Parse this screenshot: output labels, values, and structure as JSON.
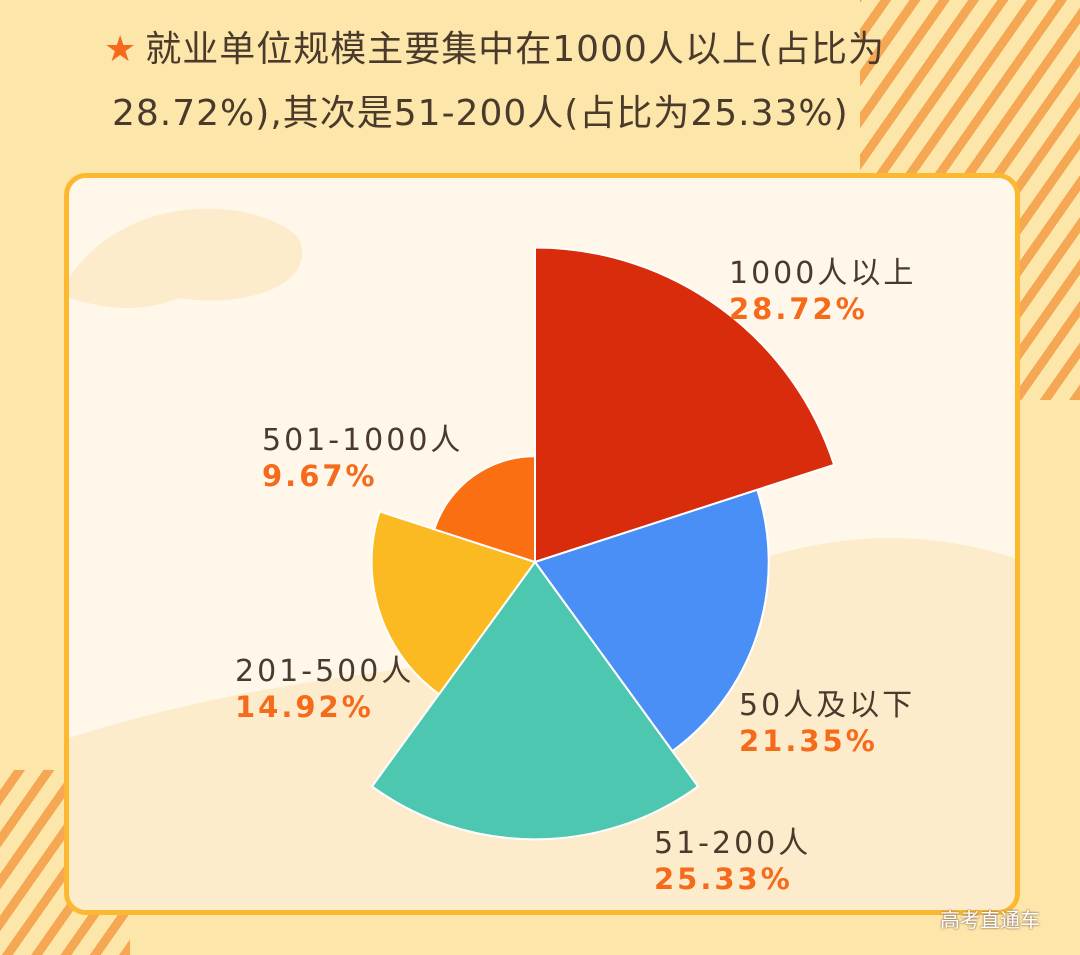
{
  "heading": {
    "star": "★",
    "line1": "就业单位规模主要集中在1000人以上(占比为",
    "line2": "28.72%),其次是51-200人(占比为25.33%)"
  },
  "watermark": "高考直通车",
  "chart_data": {
    "type": "pie",
    "variant": "rose",
    "slices": [
      {
        "label": "1000人以上",
        "value": 28.72,
        "display": "28.72%",
        "color": "#d92c0c"
      },
      {
        "label": "50人及以下",
        "value": 21.35,
        "display": "21.35%",
        "color": "#4a8ff5"
      },
      {
        "label": "51-200人",
        "value": 25.33,
        "display": "25.33%",
        "color": "#4ec7b0"
      },
      {
        "label": "201-500人",
        "value": 14.92,
        "display": "14.92%",
        "color": "#fbb922"
      },
      {
        "label": "501-1000人",
        "value": 9.67,
        "display": "9.67%",
        "color": "#fa6f11"
      }
    ]
  }
}
